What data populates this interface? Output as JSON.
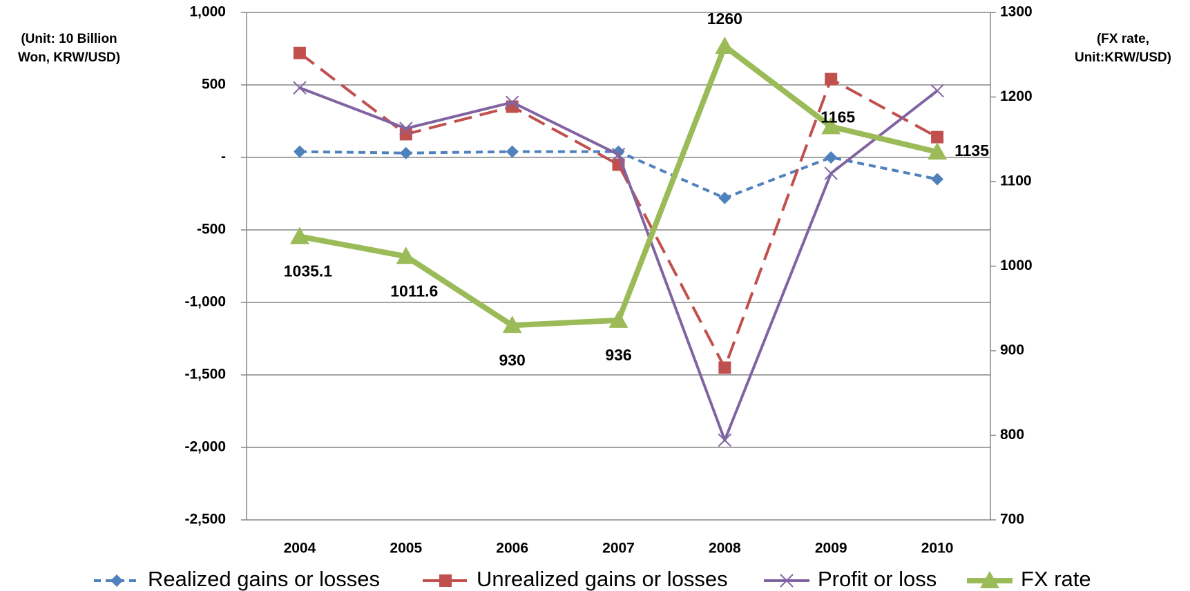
{
  "chart_data": {
    "type": "line",
    "y_label": [
      "(Unit: 10 Billion",
      "Won, KRW/USD)"
    ],
    "y2_label": [
      "(FX rate,",
      "Unit:KRW/USD)"
    ],
    "categories": [
      "2004",
      "2005",
      "2006",
      "2007",
      "2008",
      "2009",
      "2010"
    ],
    "ylim": [
      -2500,
      1000
    ],
    "yticks": [
      {
        "value": -2500,
        "label": "-2,500"
      },
      {
        "value": -2000,
        "label": "-2,000"
      },
      {
        "value": -1500,
        "label": "-1,500"
      },
      {
        "value": -1000,
        "label": "-1,000"
      },
      -500,
      {
        "value": 0,
        "label": "-"
      },
      500,
      {
        "value": 1000,
        "label": "1,000"
      }
    ],
    "y2lim": [
      700,
      1300
    ],
    "y2ticks": [
      700,
      800,
      900,
      1000,
      1100,
      1200,
      1300
    ],
    "grid": true,
    "legend": "bottom",
    "series": [
      {
        "name": "Realized gains or losses",
        "color": "#4f81bd",
        "marker": "diamond",
        "dash": "short",
        "values": [
          40,
          30,
          40,
          40,
          -280,
          0,
          -150
        ]
      },
      {
        "name": "Unrealized gains or losses",
        "color": "#c0504d",
        "marker": "square",
        "dash": "long",
        "values": [
          720,
          160,
          350,
          -50,
          -1450,
          540,
          140
        ]
      },
      {
        "name": "Profit or loss",
        "color": "#8064a2",
        "marker": "x",
        "dash": "solid",
        "values": [
          480,
          200,
          380,
          20,
          -1950,
          -110,
          460
        ]
      },
      {
        "name": "FX rate",
        "color": "#9bbb59",
        "marker": "triangle",
        "dash": "solid",
        "width": 8,
        "axis": "y2",
        "labels": true,
        "values": [
          1035.1,
          1011.6,
          930,
          936,
          1260,
          1165,
          1135
        ]
      }
    ]
  }
}
